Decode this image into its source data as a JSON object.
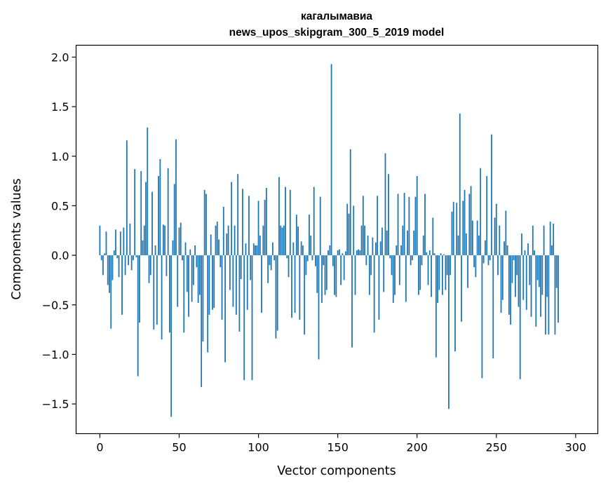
{
  "chart_data": {
    "type": "bar",
    "title": "кагалымавиа",
    "subtitle": "news_upos_skipgram_300_5_2019 model",
    "xlabel": "Vector components",
    "ylabel": "Components values",
    "xlim": [
      -15,
      314
    ],
    "ylim": [
      -1.8,
      2.12
    ],
    "xticks": [
      0,
      50,
      100,
      150,
      200,
      250,
      300
    ],
    "xtick_labels": [
      "0",
      "50",
      "100",
      "150",
      "200",
      "250",
      "300"
    ],
    "yticks": [
      -1.5,
      -1.0,
      -0.5,
      0.0,
      0.5,
      1.0,
      1.5,
      2.0
    ],
    "ytick_labels": [
      "−1.5",
      "−1.0",
      "−0.5",
      "0.0",
      "0.5",
      "1.0",
      "1.5",
      "2.0"
    ],
    "grid": false,
    "bar_color": "#1f77b4",
    "values": [
      0.3,
      -0.05,
      -0.2,
      0.02,
      0.24,
      -0.3,
      -0.38,
      -0.74,
      -0.25,
      0.05,
      0.26,
      -0.03,
      -0.22,
      0.24,
      -0.6,
      0.28,
      -0.2,
      1.16,
      -0.1,
      0.32,
      -0.15,
      -0.05,
      0.87,
      -0.02,
      -1.22,
      -0.68,
      0.85,
      0.15,
      0.3,
      0.74,
      1.29,
      -0.28,
      -0.2,
      0.64,
      -0.75,
      0.1,
      -0.7,
      0.8,
      0.97,
      -0.85,
      0.31,
      0.3,
      -0.21,
      0.88,
      -0.78,
      -1.63,
      0.15,
      0.72,
      1.17,
      -0.52,
      0.28,
      0.33,
      -0.05,
      -0.78,
      0.13,
      -0.37,
      -0.62,
      0.06,
      -0.47,
      -0.3,
      0.1,
      -0.12,
      -0.48,
      -0.4,
      -1.33,
      -0.87,
      0.66,
      0.62,
      -0.98,
      -0.6,
      0.21,
      -0.55,
      -0.53,
      0.3,
      0.34,
      0.16,
      -0.12,
      -0.65,
      0.49,
      -1.08,
      0.22,
      0.3,
      -0.35,
      0.74,
      -0.52,
      0.3,
      -0.6,
      0.82,
      -0.77,
      -0.24,
      0.67,
      -1.26,
      0.12,
      -0.55,
      0.6,
      -0.25,
      -1.26,
      0.12,
      0.1,
      0.1,
      0.55,
      0.2,
      -0.58,
      0.3,
      0.56,
      0.68,
      -0.28,
      -0.1,
      -0.15,
      0.13,
      -0.05,
      -0.84,
      -0.76,
      0.79,
      0.3,
      0.28,
      0.3,
      0.69,
      -0.03,
      -0.22,
      0.66,
      -0.63,
      0.13,
      -0.58,
      0.41,
      0.29,
      -0.65,
      0.14,
      0.1,
      -0.8,
      -0.2,
      -0.06,
      0.41,
      0.2,
      -0.05,
      0.69,
      -0.11,
      -0.38,
      -1.05,
      0.59,
      -0.48,
      -0.1,
      -0.4,
      -0.35,
      0.05,
      0.1,
      1.93,
      -0.11,
      -0.4,
      -0.42,
      0.05,
      0.06,
      -0.3,
      0.02,
      -0.25,
      0.04,
      0.52,
      0.42,
      1.07,
      -0.93,
      0.5,
      -0.4,
      0.05,
      0.06,
      0.05,
      0.3,
      0.6,
      0.3,
      -0.1,
      0.2,
      -0.4,
      -0.2,
      0.18,
      -0.78,
      0.13,
      0.6,
      -0.65,
      0.14,
      0.28,
      -0.37,
      1.03,
      0.25,
      0.82,
      -0.03,
      -0.2,
      -0.48,
      -0.4,
      0.1,
      0.62,
      -0.3,
      0.1,
      0.3,
      0.63,
      -0.47,
      0.25,
      0.59,
      -0.1,
      -0.05,
      0.25,
      0.59,
      0.8,
      -0.4,
      -0.35,
      -0.1,
      0.2,
      0.62,
      0.03,
      -0.3,
      0.05,
      -0.42,
      0.38,
      0.02,
      -1.03,
      -0.48,
      -0.35,
      0.02,
      -0.4,
      0.01,
      -0.35,
      -0.2,
      -1.55,
      -0.2,
      0.44,
      0.54,
      -0.97,
      0.53,
      0.2,
      1.43,
      -0.67,
      0.55,
      0.66,
      0.22,
      -0.33,
      0.62,
      0.7,
      0.35,
      -0.12,
      -0.22,
      0.35,
      0.2,
      0.88,
      -1.24,
      -0.08,
      0.15,
      0.8,
      -0.1,
      -0.05,
      1.22,
      -1.04,
      0.38,
      0.52,
      -0.2,
      0.3,
      -0.58,
      -0.45,
      0.14,
      0.45,
      0.1,
      -0.6,
      -0.7,
      -0.28,
      -0.05,
      -0.42,
      -0.2,
      -0.52,
      -1.25,
      0.22,
      -0.45,
      0.05,
      -0.55,
      0.12,
      -0.3,
      -0.62,
      0.3,
      0.05,
      -0.72,
      -0.25,
      -0.32,
      -0.62,
      -0.4,
      0.3,
      -0.8,
      -0.42,
      -0.8,
      0.34,
      0.1,
      0.32,
      -0.8,
      -0.33,
      -0.68
    ]
  }
}
